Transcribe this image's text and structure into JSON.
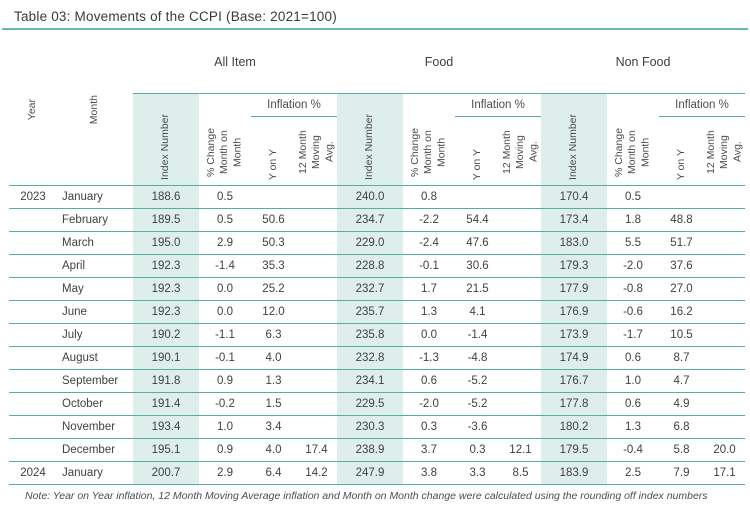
{
  "title": "Table 03: Movements of the CCPI (Base: 2021=100)",
  "note": "Note: Year on Year inflation, 12 Month Moving Average inflation and Month on Month change were calculated using the rounding off index numbers",
  "colors": {
    "accent_line": "#57aca3",
    "index_band_bg": "#deeeeb",
    "text": "#414042"
  },
  "header": {
    "year": "Year",
    "month": "Month",
    "groups": [
      "All Item",
      "Food",
      "Non Food"
    ],
    "sub": {
      "index": "Index Number",
      "mom": "% Change Month on Month",
      "inflation": "Inflation %",
      "yony": "Y on Y",
      "avg12": "12 Month Moving Avg."
    }
  },
  "rows": [
    {
      "year": "2023",
      "month": "January",
      "values": [
        "188.6",
        "0.5",
        "",
        "",
        "240.0",
        "0.8",
        "",
        "",
        "170.4",
        "0.5",
        "",
        ""
      ]
    },
    {
      "year": "",
      "month": "February",
      "values": [
        "189.5",
        "0.5",
        "50.6",
        "",
        "234.7",
        "-2.2",
        "54.4",
        "",
        "173.4",
        "1.8",
        "48.8",
        ""
      ]
    },
    {
      "year": "",
      "month": "March",
      "values": [
        "195.0",
        "2.9",
        "50.3",
        "",
        "229.0",
        "-2.4",
        "47.6",
        "",
        "183.0",
        "5.5",
        "51.7",
        ""
      ]
    },
    {
      "year": "",
      "month": "April",
      "values": [
        "192.3",
        "-1.4",
        "35.3",
        "",
        "228.8",
        "-0.1",
        "30.6",
        "",
        "179.3",
        "-2.0",
        "37.6",
        ""
      ]
    },
    {
      "year": "",
      "month": "May",
      "values": [
        "192.3",
        "0.0",
        "25.2",
        "",
        "232.7",
        "1.7",
        "21.5",
        "",
        "177.9",
        "-0.8",
        "27.0",
        ""
      ]
    },
    {
      "year": "",
      "month": "June",
      "values": [
        "192.3",
        "0.0",
        "12.0",
        "",
        "235.7",
        "1.3",
        "4.1",
        "",
        "176.9",
        "-0.6",
        "16.2",
        ""
      ]
    },
    {
      "year": "",
      "month": "July",
      "values": [
        "190.2",
        "-1.1",
        "6.3",
        "",
        "235.8",
        "0.0",
        "-1.4",
        "",
        "173.9",
        "-1.7",
        "10.5",
        ""
      ]
    },
    {
      "year": "",
      "month": "August",
      "values": [
        "190.1",
        "-0.1",
        "4.0",
        "",
        "232.8",
        "-1.3",
        "-4.8",
        "",
        "174.9",
        "0.6",
        "8.7",
        ""
      ]
    },
    {
      "year": "",
      "month": "September",
      "values": [
        "191.8",
        "0.9",
        "1.3",
        "",
        "234.1",
        "0.6",
        "-5.2",
        "",
        "176.7",
        "1.0",
        "4.7",
        ""
      ]
    },
    {
      "year": "",
      "month": "October",
      "values": [
        "191.4",
        "-0.2",
        "1.5",
        "",
        "229.5",
        "-2.0",
        "-5.2",
        "",
        "177.8",
        "0.6",
        "4.9",
        ""
      ]
    },
    {
      "year": "",
      "month": "November",
      "values": [
        "193.4",
        "1.0",
        "3.4",
        "",
        "230.3",
        "0.3",
        "-3.6",
        "",
        "180.2",
        "1.3",
        "6.8",
        ""
      ]
    },
    {
      "year": "",
      "month": "December",
      "values": [
        "195.1",
        "0.9",
        "4.0",
        "17.4",
        "238.9",
        "3.7",
        "0.3",
        "12.1",
        "179.5",
        "-0.4",
        "5.8",
        "20.0"
      ]
    },
    {
      "year": "2024",
      "month": "January",
      "values": [
        "200.7",
        "2.9",
        "6.4",
        "14.2",
        "247.9",
        "3.8",
        "3.3",
        "8.5",
        "183.9",
        "2.5",
        "7.9",
        "17.1"
      ]
    }
  ]
}
